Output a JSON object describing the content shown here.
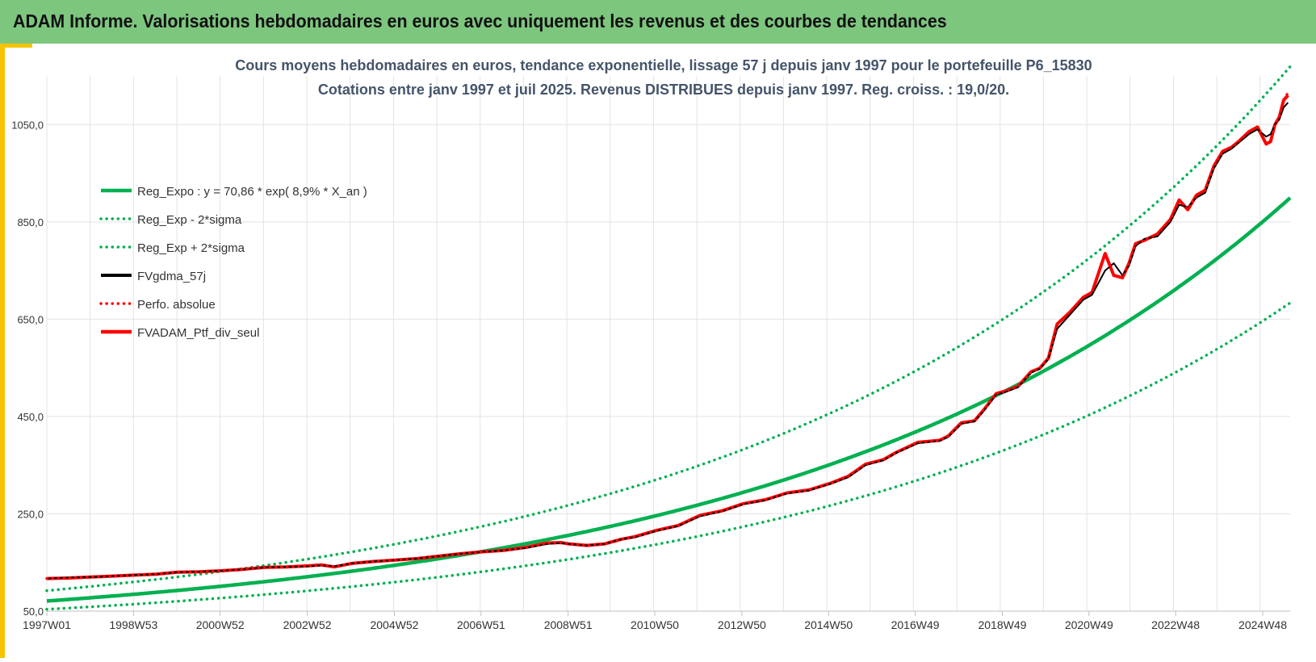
{
  "header": {
    "title": "ADAM Informe. Valorisations hebdomadaires en euros avec uniquement les revenus et des courbes de tendances"
  },
  "chart_data": {
    "type": "line",
    "title": "Cours moyens hebdomadaires  en euros, tendance exponentielle, lissage 57 j depuis janv 1997 pour le portefeuille P6_15830",
    "subtitle": "Cotations entre janv 1997 et juil 2025. Revenus DISTRIBUES depuis janv 1997. Reg. croiss. : 19,0/20.",
    "xlabel": "",
    "ylabel": "",
    "ylim": [
      50,
      1150
    ],
    "yticks": [
      50,
      250,
      450,
      650,
      850,
      1050
    ],
    "ytick_labels": [
      "50,0",
      "250,0",
      "450,0",
      "650,0",
      "850,0",
      "1050,0"
    ],
    "xlim": [
      1997.0,
      2025.55
    ],
    "xticks": [
      1997.0,
      1998.99,
      2000.98,
      2002.98,
      2004.98,
      2006.97,
      2008.97,
      2010.96,
      2012.96,
      2014.95,
      2016.94,
      2018.94,
      2020.93,
      2022.92,
      2024.92
    ],
    "xtick_labels": [
      "1997W01",
      "1998W53",
      "2000W52",
      "2002W52",
      "2004W52",
      "2006W51",
      "2008W51",
      "2010W50",
      "2012W50",
      "2014W50",
      "2016W49",
      "2018W49",
      "2020W49",
      "2022W48",
      "2024W48"
    ],
    "grid": true,
    "legend_position": "top-left",
    "trend": {
      "a": 70.86,
      "rate": 0.089,
      "sigma_low_factor": 0.76,
      "sigma_high_factor": 1.3
    },
    "x": [
      1997.0,
      1997.5,
      1998.0,
      1998.5,
      1999.0,
      1999.5,
      2000.0,
      2000.5,
      2001.0,
      2001.5,
      2002.0,
      2002.5,
      2003.0,
      2003.3,
      2003.6,
      2004.0,
      2004.5,
      2005.0,
      2005.5,
      2006.0,
      2006.5,
      2007.0,
      2007.5,
      2008.0,
      2008.5,
      2008.8,
      2009.0,
      2009.4,
      2009.8,
      2010.2,
      2010.5,
      2011.0,
      2011.5,
      2012.0,
      2012.5,
      2013.0,
      2013.5,
      2014.0,
      2014.5,
      2015.0,
      2015.4,
      2015.8,
      2016.2,
      2016.5,
      2017.0,
      2017.5,
      2017.7,
      2018.0,
      2018.3,
      2018.5,
      2018.8,
      2019.0,
      2019.3,
      2019.6,
      2019.8,
      2020.0,
      2020.2,
      2020.5,
      2020.8,
      2021.0,
      2021.3,
      2021.5,
      2021.7,
      2021.85,
      2022.0,
      2022.2,
      2022.5,
      2022.8,
      2023.0,
      2023.2,
      2023.4,
      2023.6,
      2023.8,
      2024.0,
      2024.2,
      2024.4,
      2024.6,
      2024.8,
      2025.0,
      2025.1,
      2025.2,
      2025.3,
      2025.4,
      2025.5
    ],
    "series": [
      {
        "name": "Reg_Expo : y = 70,86 *  exp( 8,9% *  X_an )",
        "color": "#00b050",
        "style": "solid-thick",
        "kind": "trend"
      },
      {
        "name": "Reg_Exp - 2*sigma",
        "color": "#00b050",
        "style": "dotted",
        "kind": "trend_low"
      },
      {
        "name": "Reg_Exp + 2*sigma",
        "color": "#00b050",
        "style": "dotted",
        "kind": "trend_high"
      },
      {
        "name": "FVgdma_57j",
        "color": "#000000",
        "style": "solid",
        "values": [
          117,
          119,
          120,
          122,
          124,
          126,
          130,
          131,
          133,
          136,
          140,
          141,
          142,
          144,
          142,
          148,
          152,
          155,
          158,
          163,
          168,
          172,
          175,
          180,
          188,
          190,
          188,
          185,
          188,
          198,
          202,
          215,
          225,
          245,
          255,
          270,
          278,
          292,
          298,
          312,
          325,
          350,
          360,
          375,
          395,
          400,
          408,
          435,
          440,
          460,
          495,
          500,
          510,
          540,
          548,
          568,
          630,
          660,
          690,
          700,
          750,
          765,
          740,
          760,
          800,
          815,
          820,
          850,
          885,
          880,
          900,
          910,
          960,
          990,
          1000,
          1015,
          1030,
          1040,
          1025,
          1030,
          1050,
          1060,
          1085,
          1095
        ]
      },
      {
        "name": "Perfo. absolue",
        "color": "#ff0000",
        "style": "dotted",
        "values": [
          117,
          118,
          120,
          122,
          124,
          126,
          130,
          131,
          133,
          136,
          140,
          141,
          143,
          145,
          141,
          148,
          152,
          155,
          158,
          163,
          168,
          172,
          175,
          181,
          190,
          191,
          188,
          185,
          188,
          198,
          203,
          216,
          226,
          247,
          256,
          271,
          279,
          293,
          299,
          313,
          327,
          352,
          361,
          376,
          397,
          401,
          410,
          437,
          441,
          462,
          497,
          502,
          512,
          542,
          549,
          570,
          640,
          665,
          695,
          705,
          785,
          740,
          735,
          765,
          805,
          812,
          825,
          855,
          895,
          875,
          905,
          915,
          965,
          995,
          1003,
          1018,
          1035,
          1045,
          1010,
          1015,
          1050,
          1065,
          1100,
          1115
        ]
      },
      {
        "name": "FVADAM_Ptf_div_seul",
        "color": "#ff0000",
        "style": "solid-thick",
        "values": [
          117,
          118,
          120,
          122,
          124,
          126,
          130,
          131,
          133,
          136,
          140,
          141,
          143,
          145,
          141,
          148,
          152,
          155,
          158,
          163,
          168,
          172,
          175,
          181,
          190,
          191,
          188,
          185,
          188,
          198,
          203,
          216,
          226,
          247,
          256,
          271,
          279,
          293,
          299,
          313,
          327,
          352,
          361,
          376,
          397,
          401,
          410,
          437,
          441,
          462,
          497,
          502,
          512,
          542,
          549,
          570,
          640,
          665,
          695,
          705,
          785,
          740,
          735,
          765,
          805,
          812,
          825,
          855,
          895,
          875,
          905,
          915,
          965,
          995,
          1003,
          1018,
          1035,
          1045,
          1010,
          1015,
          1050,
          1065,
          1100,
          1110
        ]
      }
    ]
  }
}
